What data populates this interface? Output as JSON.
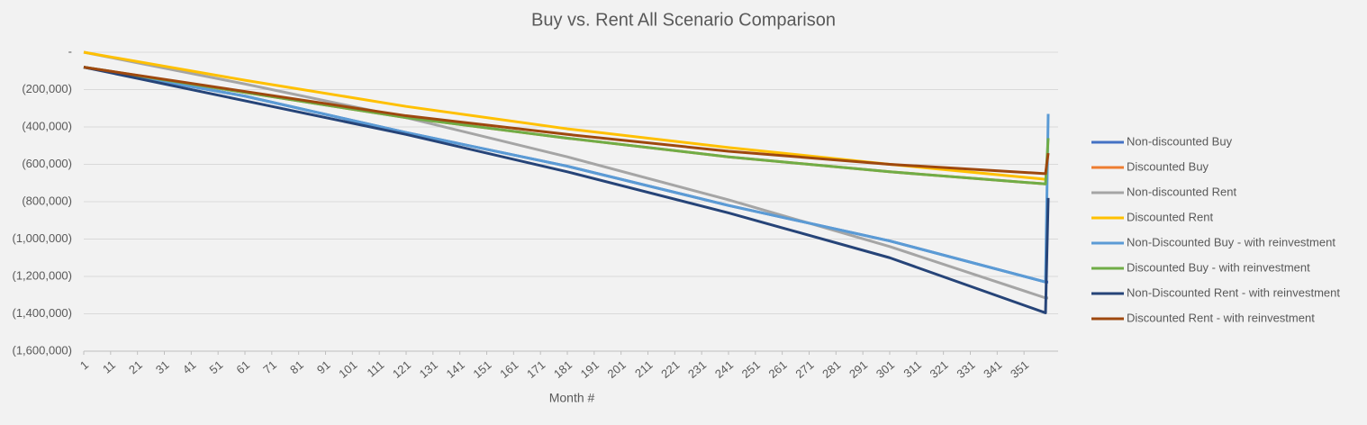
{
  "chart_data": {
    "type": "line",
    "title": "Buy vs. Rent All Scenario Comparison",
    "x_label": "Month #",
    "x": [
      1,
      61,
      121,
      181,
      241,
      301,
      359,
      360
    ],
    "xlim": [
      1,
      360
    ],
    "xticks": [
      1,
      11,
      21,
      31,
      41,
      51,
      61,
      71,
      81,
      91,
      101,
      111,
      121,
      131,
      141,
      151,
      161,
      171,
      181,
      191,
      201,
      211,
      221,
      231,
      241,
      251,
      261,
      271,
      281,
      291,
      301,
      311,
      321,
      331,
      341,
      351
    ],
    "ylim": [
      -1600000,
      0
    ],
    "yticks": [
      {
        "value": 0,
        "label": "-"
      },
      {
        "value": -200000,
        "label": "(200,000)"
      },
      {
        "value": -400000,
        "label": "(400,000)"
      },
      {
        "value": -600000,
        "label": "(600,000)"
      },
      {
        "value": -800000,
        "label": "(800,000)"
      },
      {
        "value": -1000000,
        "label": "(1,000,000)"
      },
      {
        "value": -1200000,
        "label": "(1,200,000)"
      },
      {
        "value": -1400000,
        "label": "(1,400,000)"
      },
      {
        "value": -1600000,
        "label": "(1,600,000)"
      }
    ],
    "grid": true,
    "legend": "right",
    "series": [
      {
        "name": "Non-discounted Buy",
        "color": "#4472c4",
        "values": [
          -80000,
          -235000,
          -430000,
          -610000,
          -820000,
          -1010000,
          -1230000,
          -1230000
        ]
      },
      {
        "name": "Discounted Buy",
        "color": "#ed7d31",
        "values": [
          -80000,
          -215000,
          -350000,
          -460000,
          -560000,
          -640000,
          -705000,
          -705000
        ]
      },
      {
        "name": "Non-discounted Rent",
        "color": "#a5a5a5",
        "values": [
          0,
          -170000,
          -350000,
          -560000,
          -790000,
          -1040000,
          -1315000,
          -1315000
        ]
      },
      {
        "name": "Discounted Rent",
        "color": "#ffc000",
        "values": [
          0,
          -150000,
          -290000,
          -410000,
          -510000,
          -600000,
          -680000,
          -680000
        ]
      },
      {
        "name": "Non-Discounted Buy - with reinvestment",
        "color": "#5b9bd5",
        "values": [
          -80000,
          -235000,
          -430000,
          -610000,
          -820000,
          -1010000,
          -1230000,
          -330000
        ]
      },
      {
        "name": "Discounted Buy - with reinvestment",
        "color": "#70ad47",
        "values": [
          -80000,
          -215000,
          -350000,
          -460000,
          -560000,
          -640000,
          -705000,
          -460000
        ]
      },
      {
        "name": "Non-Discounted Rent - with reinvestment",
        "color": "#264478",
        "values": [
          -80000,
          -260000,
          -440000,
          -640000,
          -860000,
          -1100000,
          -1395000,
          -780000
        ]
      },
      {
        "name": "Discounted Rent - with reinvestment",
        "color": "#9e480e",
        "values": [
          -80000,
          -210000,
          -340000,
          -440000,
          -530000,
          -600000,
          -650000,
          -540000
        ]
      }
    ]
  }
}
